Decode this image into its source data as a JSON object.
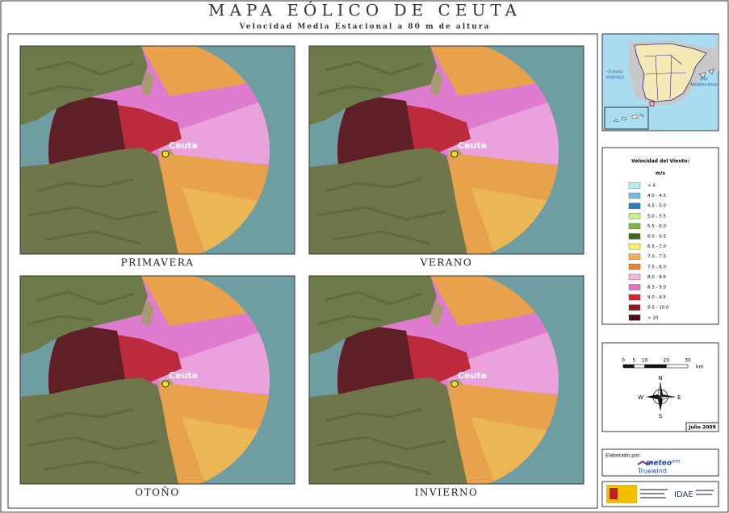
{
  "header": {
    "title": "MAPA EÓLICO DE CEUTA",
    "subtitle": "Velocidad Media Estacional a 80 m de altura"
  },
  "panels": [
    {
      "season": "PRIMAVERA",
      "place": "Ceuta"
    },
    {
      "season": "VERANO",
      "place": "Ceuta"
    },
    {
      "season": "OTOÑO",
      "place": "Ceuta"
    },
    {
      "season": "INVIERNO",
      "place": "Ceuta"
    }
  ],
  "inset": {
    "ocean": [
      "Océano",
      "Atlántico"
    ],
    "sea": [
      "Mar",
      "Mediterráneo"
    ]
  },
  "legend": {
    "title": "Velocidad del Viento:",
    "unit": "m/s",
    "items": [
      {
        "label": "< 4",
        "color": "#b6eef4"
      },
      {
        "label": "4.0 - 4.5",
        "color": "#6cc0e8"
      },
      {
        "label": "4.5 - 5.0",
        "color": "#2e7cc6"
      },
      {
        "label": "5.0 - 5.5",
        "color": "#c9f08c"
      },
      {
        "label": "5.5 - 6.0",
        "color": "#7db83a"
      },
      {
        "label": "6.0 - 6.5",
        "color": "#3b6a1d"
      },
      {
        "label": "6.5 - 7.0",
        "color": "#f4f46a"
      },
      {
        "label": "7.0 - 7.5",
        "color": "#f0b24a"
      },
      {
        "label": "7.5 - 8.0",
        "color": "#e8862c"
      },
      {
        "label": "8.0 - 8.5",
        "color": "#f2b6da"
      },
      {
        "label": "8.5 - 9.0",
        "color": "#e070c8"
      },
      {
        "label": "9.0 - 9.5",
        "color": "#e0202c"
      },
      {
        "label": "9.5 - 10.0",
        "color": "#8a1a1c"
      },
      {
        "label": "> 10",
        "color": "#4a0e14"
      }
    ]
  },
  "scale": {
    "ticks": [
      0,
      5,
      10,
      20,
      30
    ],
    "unit": "km"
  },
  "compass": {
    "north": "N",
    "south": "S",
    "east": "E",
    "west": "W"
  },
  "date": "Julio 2009",
  "credits": {
    "label": "Elaborado por:",
    "logo": "meteo",
    "logo_suffix": "sim",
    "logo_sub": "Truewind",
    "sponsor": "IDAE"
  }
}
